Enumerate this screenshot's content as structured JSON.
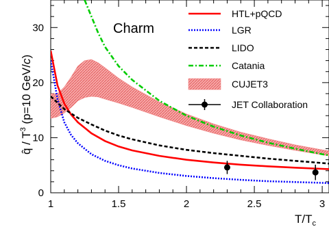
{
  "chart_data": {
    "type": "line",
    "title": "Charm",
    "xlabel_main": "T/T",
    "xlabel_sub": "c",
    "ylabel_prefix": "q̂ / T",
    "ylabel_sup": "3",
    "ylabel_suffix_pre": " (p=10 GeV/",
    "ylabel_suffix_c": "c",
    "ylabel_suffix_post": ")",
    "xlim": [
      1.0,
      3.05
    ],
    "ylim": [
      0,
      35
    ],
    "x_ticks": [
      1,
      1.5,
      2,
      2.5,
      3
    ],
    "x_tick_labels": [
      "1",
      "1.5",
      "2",
      "2.5",
      "3"
    ],
    "y_ticks": [
      0,
      10,
      20,
      30
    ],
    "y_tick_labels": [
      "0",
      "10",
      "20",
      "30"
    ],
    "legend_position": "top-right",
    "series": [
      {
        "name": "HTL+pQCD",
        "color": "#ff0000",
        "style": "solid",
        "x": [
          1.0,
          1.05,
          1.1,
          1.15,
          1.2,
          1.3,
          1.4,
          1.5,
          1.6,
          1.8,
          2.0,
          2.2,
          2.4,
          2.6,
          2.8,
          3.0,
          3.05
        ],
        "y": [
          25.8,
          19.5,
          16.2,
          14.2,
          12.8,
          10.8,
          9.4,
          8.4,
          7.7,
          6.7,
          6.0,
          5.5,
          5.1,
          4.8,
          4.55,
          4.35,
          4.3
        ]
      },
      {
        "name": "LGR",
        "color": "#0000ff",
        "style": "dotted",
        "x": [
          1.0,
          1.05,
          1.1,
          1.15,
          1.2,
          1.3,
          1.4,
          1.5,
          1.6,
          1.8,
          2.0,
          2.2,
          2.4,
          2.6,
          2.8,
          3.0,
          3.05
        ],
        "y": [
          24.0,
          17.0,
          12.8,
          10.5,
          9.0,
          7.0,
          5.8,
          5.0,
          4.4,
          3.6,
          3.05,
          2.65,
          2.35,
          2.1,
          1.95,
          1.8,
          1.75
        ]
      },
      {
        "name": "LIDO",
        "color": "#000000",
        "style": "dashed",
        "x": [
          1.0,
          1.1,
          1.2,
          1.3,
          1.4,
          1.5,
          1.6,
          1.8,
          2.0,
          2.2,
          2.4,
          2.6,
          2.8,
          3.0,
          3.05
        ],
        "y": [
          17.5,
          15.2,
          13.6,
          12.4,
          11.3,
          10.4,
          9.7,
          8.6,
          7.8,
          7.2,
          6.7,
          6.2,
          5.8,
          5.4,
          5.3
        ]
      },
      {
        "name": "Catania",
        "color": "#00cc00",
        "style": "dashdot",
        "x": [
          1.25,
          1.3,
          1.35,
          1.4,
          1.5,
          1.6,
          1.8,
          2.0,
          2.2,
          2.4,
          2.6,
          2.8,
          3.0,
          3.05
        ],
        "y": [
          35.0,
          32.0,
          29.0,
          26.5,
          23.0,
          20.5,
          16.7,
          14.0,
          12.0,
          10.4,
          9.1,
          8.0,
          7.0,
          6.8
        ]
      }
    ],
    "band": {
      "name": "CUJET3",
      "color": "#f08080",
      "x": [
        1.0,
        1.05,
        1.1,
        1.15,
        1.2,
        1.25,
        1.3,
        1.35,
        1.4,
        1.5,
        1.6,
        1.8,
        2.0,
        2.2,
        2.4,
        2.6,
        2.8,
        3.0,
        3.05
      ],
      "low": [
        13.5,
        13.8,
        14.5,
        15.5,
        16.7,
        17.3,
        17.5,
        17.4,
        17.0,
        16.3,
        15.5,
        13.8,
        12.2,
        10.8,
        9.6,
        8.6,
        7.7,
        6.9,
        6.7
      ],
      "high": [
        18.0,
        18.0,
        19.2,
        21.0,
        23.0,
        24.0,
        24.2,
        23.6,
        22.7,
        20.8,
        19.2,
        16.5,
        14.3,
        12.5,
        11.0,
        9.8,
        8.7,
        7.8,
        7.6
      ]
    },
    "points": {
      "name": "JET Collaboration",
      "color": "#000000",
      "x": [
        2.3,
        2.95
      ],
      "y": [
        4.6,
        3.7
      ],
      "yerr": [
        1.2,
        1.4
      ]
    }
  }
}
